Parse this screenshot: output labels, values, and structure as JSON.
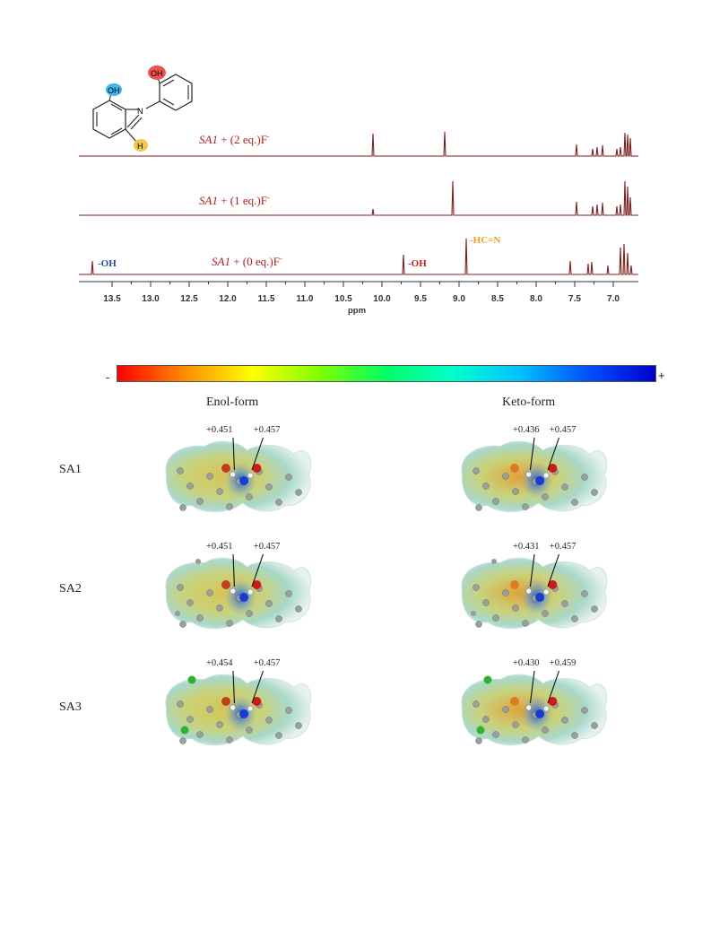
{
  "nmr_spectrum": {
    "traces": [
      {
        "label_compound": "SA1",
        "label_rest": " + (2 eq.)F",
        "label_sup": "-"
      },
      {
        "label_compound": "SA1",
        "label_rest": " + (1 eq.)F",
        "label_sup": "-"
      },
      {
        "label_compound": "SA1",
        "label_rest": " + (0 eq.)F",
        "label_sup": "-"
      }
    ],
    "peak_annotations": {
      "oh_left": "-OH",
      "oh_middle": "-OH",
      "imine": "-HC=N"
    },
    "x_axis": {
      "title": "ppm",
      "ticks": [
        "13.5",
        "13.0",
        "12.5",
        "12.0",
        "11.5",
        "11.0",
        "10.5",
        "10.0",
        "9.5",
        "9.0",
        "8.5",
        "8.0",
        "7.5",
        "7.0"
      ]
    },
    "structure_labels": {
      "oh1": "OH",
      "oh2": "OH",
      "n": "N",
      "h": "H"
    }
  },
  "color_scale": {
    "minus": "-",
    "plus": "+",
    "stops": [
      "#ff0000",
      "#ff8c00",
      "#ffff00",
      "#7fff00",
      "#00ff66",
      "#00ffcc",
      "#00bfff",
      "#0050ff",
      "#0000cc"
    ]
  },
  "mep_grid": {
    "columns": [
      "Enol-form",
      "Keto-form"
    ],
    "rows": [
      {
        "name": "SA1",
        "enol": [
          "+0.451",
          "+0.457"
        ],
        "keto": [
          "+0.436",
          "+0.457"
        ]
      },
      {
        "name": "SA2",
        "enol": [
          "+0.451",
          "+0.457"
        ],
        "keto": [
          "+0.431",
          "+0.457"
        ]
      },
      {
        "name": "SA3",
        "enol": [
          "+0.454",
          "+0.457"
        ],
        "keto": [
          "+0.430",
          "+0.459"
        ]
      }
    ]
  },
  "colors": {
    "trace": "#7b1f1f",
    "label_red": "#b01e1e",
    "oh_blue": "#1f4fa0",
    "oh_red": "#cc1f1f",
    "imine_orange": "#e8a020"
  }
}
